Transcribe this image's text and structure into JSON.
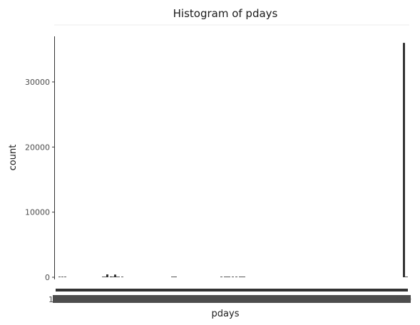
{
  "chart_data": {
    "type": "bar",
    "title": "Histogram of pdays",
    "xlabel": "pdays",
    "ylabel": "count",
    "ylim": [
      0,
      37000
    ],
    "yticks": [
      0,
      10000,
      20000,
      30000
    ],
    "xticks_first": "1",
    "xticks_last": "999",
    "grid": false,
    "legend": "none",
    "bar_color": "#333333",
    "categories": [
      "0",
      "1",
      "2",
      "3",
      "4",
      "5",
      "6",
      "7",
      "8",
      "9",
      "10",
      "11",
      "12",
      "13",
      "14",
      "15",
      "16",
      "17",
      "18",
      "19",
      "20",
      "21",
      "22",
      "25",
      "26",
      "27",
      "999"
    ],
    "values": [
      15,
      26,
      61,
      439,
      118,
      46,
      412,
      60,
      18,
      64,
      52,
      28,
      58,
      36,
      20,
      24,
      11,
      8,
      7,
      3,
      1,
      1,
      3,
      1,
      1,
      1,
      36000
    ]
  }
}
